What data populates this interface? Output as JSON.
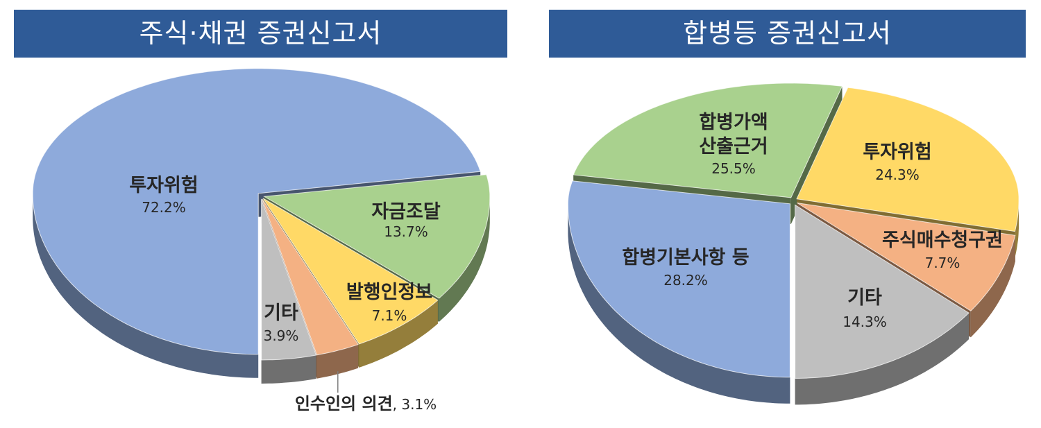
{
  "theme": {
    "title_bar": "#2f5b97",
    "title_text": "#ffffff",
    "label_text": "#262626"
  },
  "chart_data": [
    {
      "type": "pie",
      "three_d": true,
      "exploded": true,
      "title": "주식·채권 증권신고서",
      "categories": [
        "투자위험",
        "자금조달",
        "발행인정보",
        "인수인의 의견",
        "기타"
      ],
      "values": [
        72.2,
        13.7,
        7.1,
        3.1,
        3.9
      ],
      "value_labels": [
        "72.2%",
        "13.7%",
        "7.1%",
        "3.1%",
        "3.9%"
      ],
      "colors": [
        "#8eaadb",
        "#a9d18e",
        "#ffd966",
        "#f4b183",
        "#bfbfbf"
      ]
    },
    {
      "type": "pie",
      "three_d": true,
      "exploded": true,
      "title": "합병등 증권신고서",
      "categories": [
        "합병기본사항 등",
        "합병가액\n산출근거",
        "투자위험",
        "주식매수청구권",
        "기타"
      ],
      "values": [
        28.2,
        25.5,
        24.3,
        7.7,
        14.3
      ],
      "value_labels": [
        "28.2%",
        "25.5%",
        "24.3%",
        "7.7%",
        "14.3%"
      ],
      "colors": [
        "#8eaadb",
        "#a9d18e",
        "#ffd966",
        "#f4b183",
        "#bfbfbf"
      ]
    }
  ]
}
